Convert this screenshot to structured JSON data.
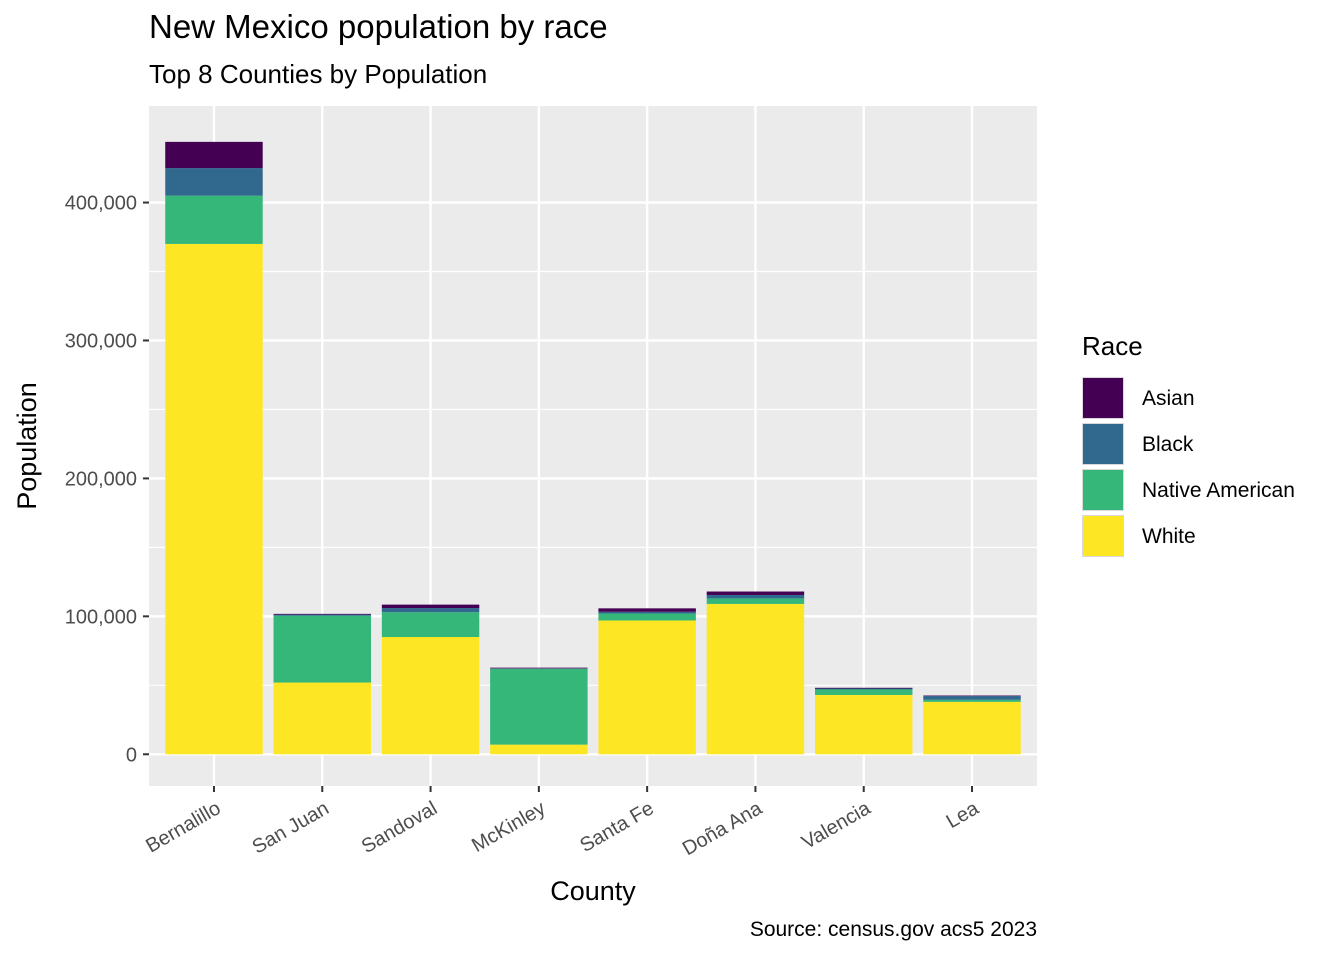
{
  "chart_data": {
    "type": "bar",
    "stacked": true,
    "title": "New Mexico population by race",
    "subtitle": "Top 8 Counties by Population",
    "caption": "Source: census.gov acs5 2023",
    "xlabel": "County",
    "ylabel": "Population",
    "ylim": [
      -23000,
      470000
    ],
    "yticks": [
      0,
      100000,
      200000,
      300000,
      400000
    ],
    "ytick_labels": [
      "0",
      "100,000",
      "200,000",
      "300,000",
      "400,000"
    ],
    "grid": true,
    "legend_title": "Race",
    "legend_position": "right",
    "categories": [
      "Bernalillo",
      "San Juan",
      "Sandoval",
      "McKinley",
      "Santa Fe",
      "Doña Ana",
      "Valencia",
      "Lea"
    ],
    "series": [
      {
        "name": "White",
        "color": "#FDE725",
        "values": [
          370000,
          52000,
          85000,
          7000,
          97000,
          109000,
          43000,
          38000
        ]
      },
      {
        "name": "Native American",
        "color": "#35B779",
        "values": [
          35000,
          48500,
          18000,
          55000,
          5000,
          4000,
          4000,
          1500
        ]
      },
      {
        "name": "Black",
        "color": "#31688E",
        "values": [
          20000,
          800,
          3000,
          300,
          1300,
          2500,
          700,
          2700
        ]
      },
      {
        "name": "Asian",
        "color": "#440154",
        "values": [
          19000,
          500,
          2500,
          500,
          2500,
          2500,
          500,
          400
        ]
      }
    ]
  }
}
